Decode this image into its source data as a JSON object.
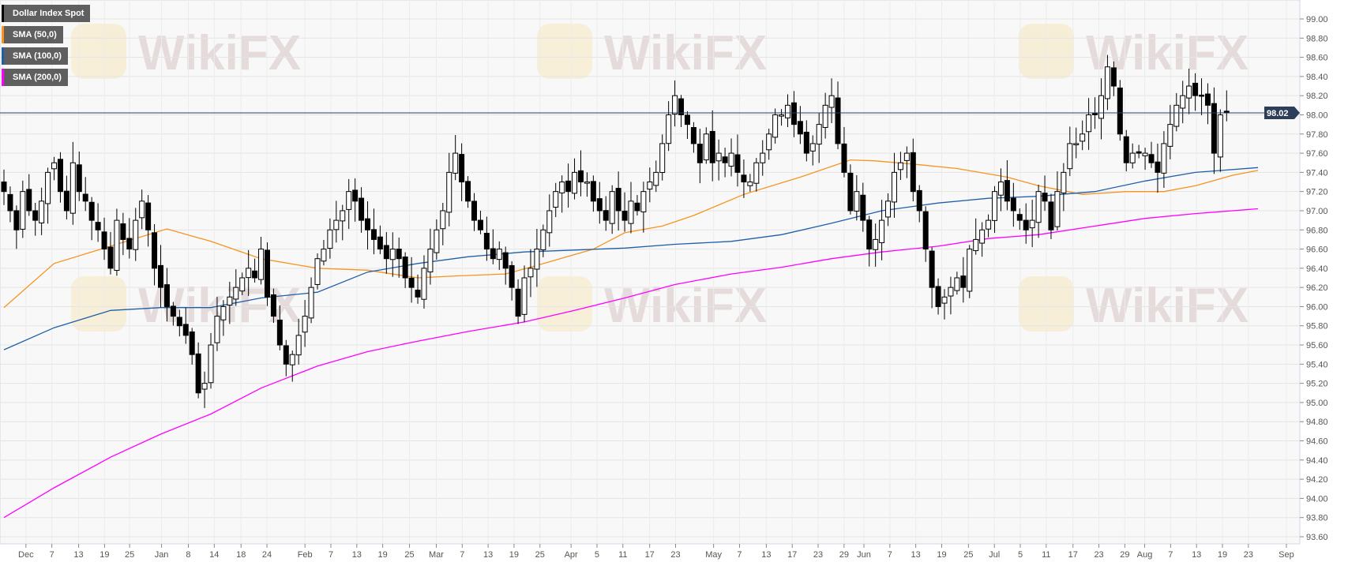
{
  "watermark": "WikiFX",
  "legend": [
    {
      "label": "Dollar Index Spot",
      "color": "#000000"
    },
    {
      "label": "SMA (50,0)",
      "color": "#f7931e"
    },
    {
      "label": "SMA (100,0)",
      "color": "#1f5fa8"
    },
    {
      "label": "SMA (200,0)",
      "color": "#ff00ff"
    }
  ],
  "chart_data": {
    "type": "candlestick",
    "title": "",
    "series_name": "Dollar Index Spot",
    "ylim": [
      93.6,
      99.0
    ],
    "y_ticks": [
      "99.00",
      "98.80",
      "98.60",
      "98.40",
      "98.20",
      "98.00",
      "97.80",
      "97.60",
      "97.40",
      "97.20",
      "97.00",
      "96.80",
      "96.60",
      "96.40",
      "96.20",
      "96.00",
      "95.80",
      "95.60",
      "95.40",
      "95.20",
      "95.00",
      "94.80",
      "94.60",
      "94.40",
      "94.20",
      "94.00",
      "93.80",
      "93.60"
    ],
    "x_ticks": [
      "Dec",
      "7",
      "13",
      "19",
      "25",
      "Jan",
      "8",
      "14",
      "18",
      "24",
      "Feb",
      "7",
      "13",
      "19",
      "25",
      "Mar",
      "7",
      "13",
      "19",
      "25",
      "Apr",
      "5",
      "11",
      "17",
      "23",
      "May",
      "7",
      "13",
      "17",
      "23",
      "29",
      "Jun",
      "7",
      "13",
      "19",
      "25",
      "Jul",
      "5",
      "11",
      "17",
      "23",
      "29",
      "Aug",
      "7",
      "13",
      "19",
      "23",
      "Sep"
    ],
    "last_price": "98.02",
    "grid": true,
    "closes": [
      97.2,
      97.0,
      96.8,
      97.2,
      97.0,
      96.9,
      97.1,
      97.4,
      97.5,
      97.2,
      97.0,
      97.5,
      97.2,
      97.1,
      96.9,
      96.8,
      96.6,
      96.4,
      96.9,
      96.7,
      96.6,
      96.9,
      97.1,
      96.8,
      96.4,
      96.2,
      96.0,
      95.9,
      95.8,
      95.7,
      95.5,
      95.1,
      95.2,
      95.6,
      95.9,
      96.0,
      96.1,
      96.2,
      96.3,
      96.4,
      96.3,
      96.6,
      96.1,
      95.9,
      95.6,
      95.4,
      95.5,
      95.7,
      95.9,
      96.2,
      96.5,
      96.6,
      96.8,
      96.9,
      97.0,
      97.2,
      97.1,
      96.9,
      96.8,
      96.7,
      96.6,
      96.5,
      96.6,
      96.5,
      96.3,
      96.2,
      96.1,
      96.4,
      96.6,
      96.8,
      97.0,
      97.4,
      97.6,
      97.3,
      97.1,
      96.9,
      96.8,
      96.6,
      96.5,
      96.6,
      96.4,
      96.2,
      95.9,
      96.3,
      96.4,
      96.6,
      96.8,
      97.0,
      97.2,
      97.3,
      97.2,
      97.4,
      97.3,
      97.3,
      97.1,
      97.0,
      96.9,
      97.2,
      97.0,
      96.9,
      97.1,
      97.0,
      97.2,
      97.3,
      97.4,
      97.7,
      98.0,
      98.2,
      98.0,
      97.9,
      97.7,
      97.5,
      97.8,
      97.5,
      97.6,
      97.5,
      97.6,
      97.4,
      97.3,
      97.3,
      97.5,
      97.6,
      97.8,
      98.0,
      98.0,
      98.1,
      97.9,
      97.8,
      97.6,
      97.7,
      97.9,
      98.1,
      98.2,
      97.7,
      97.4,
      97.0,
      97.2,
      96.9,
      96.6,
      96.7,
      96.9,
      97.1,
      97.4,
      97.5,
      97.6,
      97.2,
      97.0,
      96.6,
      96.2,
      96.0,
      96.1,
      96.2,
      96.3,
      96.2,
      96.6,
      96.7,
      96.8,
      96.9,
      97.2,
      97.3,
      97.1,
      97.0,
      96.9,
      96.8,
      96.9,
      97.2,
      97.1,
      96.8,
      97.2,
      97.4,
      97.7,
      97.7,
      97.8,
      98.0,
      98.0,
      98.2,
      98.5,
      98.3,
      97.8,
      97.5,
      97.6,
      97.6,
      97.6,
      97.5,
      97.4,
      97.7,
      97.9,
      98.1,
      98.2,
      98.3,
      98.2,
      98.2,
      98.1,
      97.6,
      98.0,
      98.02
    ],
    "sma": [
      {
        "name": "SMA (50,0)",
        "color": "#f7931e",
        "points": [
          [
            0,
            95.99
          ],
          [
            8,
            96.45
          ],
          [
            17,
            96.63
          ],
          [
            26,
            96.81
          ],
          [
            33,
            96.68
          ],
          [
            41,
            96.5
          ],
          [
            50,
            96.4
          ],
          [
            58,
            96.38
          ],
          [
            66,
            96.3
          ],
          [
            72,
            96.32
          ],
          [
            80,
            96.34
          ],
          [
            85,
            96.43
          ],
          [
            94,
            96.6
          ],
          [
            99,
            96.77
          ],
          [
            105,
            96.84
          ],
          [
            110,
            96.95
          ],
          [
            118,
            97.17
          ],
          [
            127,
            97.35
          ],
          [
            135,
            97.53
          ],
          [
            139,
            97.52
          ],
          [
            146,
            97.48
          ],
          [
            152,
            97.44
          ],
          [
            160,
            97.35
          ],
          [
            165,
            97.26
          ],
          [
            172,
            97.17
          ],
          [
            179,
            97.2
          ],
          [
            185,
            97.2
          ],
          [
            190,
            97.26
          ],
          [
            196,
            97.37
          ],
          [
            200,
            97.42
          ]
        ]
      },
      {
        "name": "SMA (100,0)",
        "color": "#1f5fa8",
        "points": [
          [
            0,
            95.55
          ],
          [
            8,
            95.78
          ],
          [
            17,
            95.96
          ],
          [
            25,
            95.99
          ],
          [
            33,
            95.99
          ],
          [
            41,
            96.09
          ],
          [
            50,
            96.15
          ],
          [
            58,
            96.36
          ],
          [
            66,
            96.45
          ],
          [
            74,
            96.52
          ],
          [
            83,
            96.57
          ],
          [
            91,
            96.59
          ],
          [
            99,
            96.61
          ],
          [
            107,
            96.65
          ],
          [
            116,
            96.68
          ],
          [
            124,
            96.75
          ],
          [
            132,
            96.87
          ],
          [
            140,
            97.0
          ],
          [
            149,
            97.08
          ],
          [
            157,
            97.13
          ],
          [
            165,
            97.15
          ],
          [
            174,
            97.2
          ],
          [
            182,
            97.31
          ],
          [
            190,
            97.4
          ],
          [
            200,
            97.45
          ]
        ]
      },
      {
        "name": "SMA (200,0)",
        "color": "#ff00ff",
        "points": [
          [
            0,
            93.8
          ],
          [
            8,
            94.11
          ],
          [
            17,
            94.43
          ],
          [
            25,
            94.67
          ],
          [
            33,
            94.88
          ],
          [
            41,
            95.15
          ],
          [
            50,
            95.38
          ],
          [
            58,
            95.53
          ],
          [
            66,
            95.64
          ],
          [
            74,
            95.74
          ],
          [
            83,
            95.84
          ],
          [
            91,
            95.96
          ],
          [
            99,
            96.09
          ],
          [
            107,
            96.23
          ],
          [
            116,
            96.34
          ],
          [
            124,
            96.41
          ],
          [
            132,
            96.5
          ],
          [
            140,
            96.57
          ],
          [
            149,
            96.63
          ],
          [
            157,
            96.71
          ],
          [
            165,
            96.75
          ],
          [
            174,
            96.84
          ],
          [
            182,
            96.92
          ],
          [
            190,
            96.97
          ],
          [
            200,
            97.02
          ]
        ]
      }
    ]
  }
}
